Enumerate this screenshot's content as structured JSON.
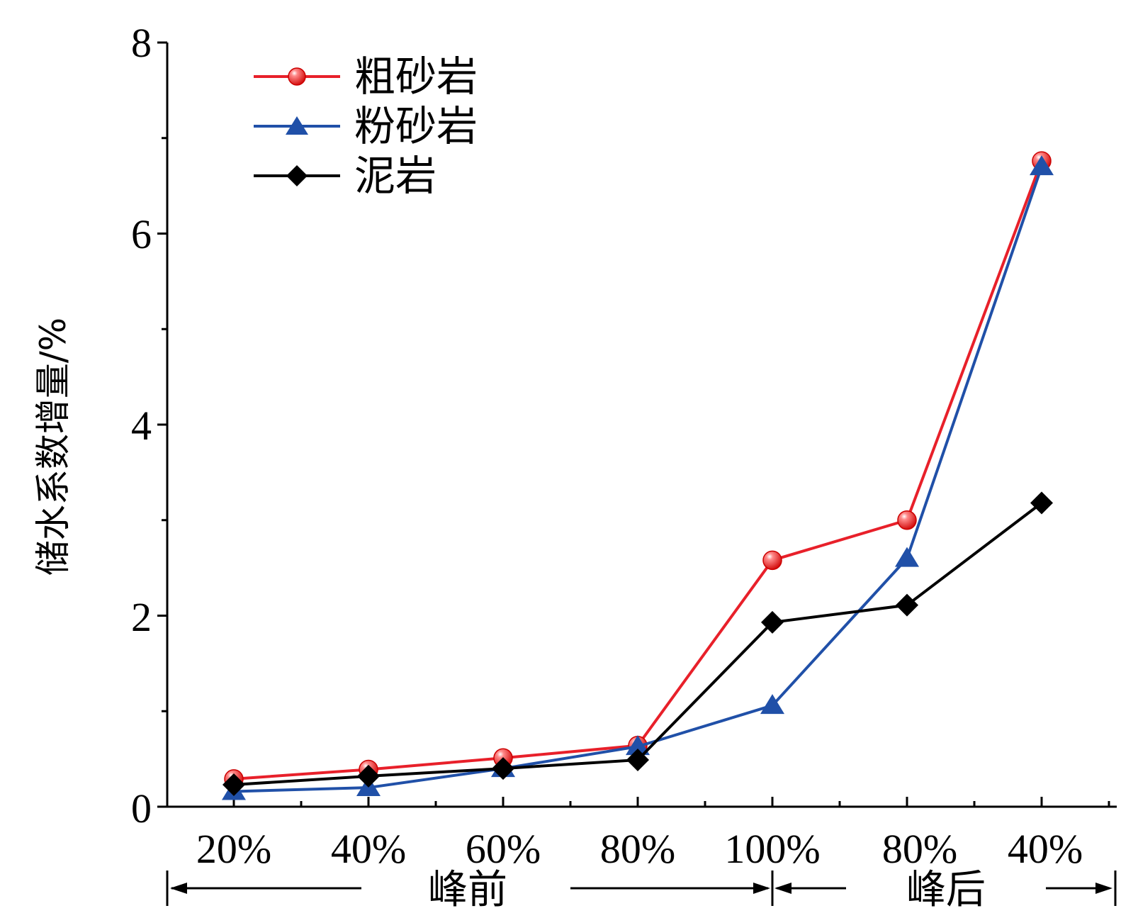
{
  "chart_data": {
    "type": "line",
    "title": "",
    "xlabel": "",
    "ylabel": "储水系数增量/%",
    "ylim": [
      0,
      8
    ],
    "yticks": [
      "0",
      "2",
      "4",
      "6",
      "8"
    ],
    "categories": [
      "20%",
      "40%",
      "60%",
      "80%",
      "100%",
      "80%",
      "40%"
    ],
    "phases": [
      {
        "label": "峰前",
        "from": 0,
        "to": 4
      },
      {
        "label": "峰后",
        "from": 4,
        "to": 6
      }
    ],
    "legend_position": "top-left",
    "grid": false,
    "series": [
      {
        "name": "粗砂岩",
        "color": "#e8202a",
        "marker": "circle",
        "values": [
          0.29,
          0.39,
          0.51,
          0.64,
          2.58,
          3.0,
          6.76
        ]
      },
      {
        "name": "粉砂岩",
        "color": "#2050a8",
        "marker": "triangle",
        "values": [
          0.16,
          0.2,
          0.4,
          0.63,
          1.06,
          2.6,
          6.7
        ]
      },
      {
        "name": "泥岩",
        "color": "#000000",
        "marker": "diamond",
        "values": [
          0.23,
          0.32,
          0.4,
          0.49,
          1.93,
          2.11,
          3.18
        ]
      }
    ]
  }
}
